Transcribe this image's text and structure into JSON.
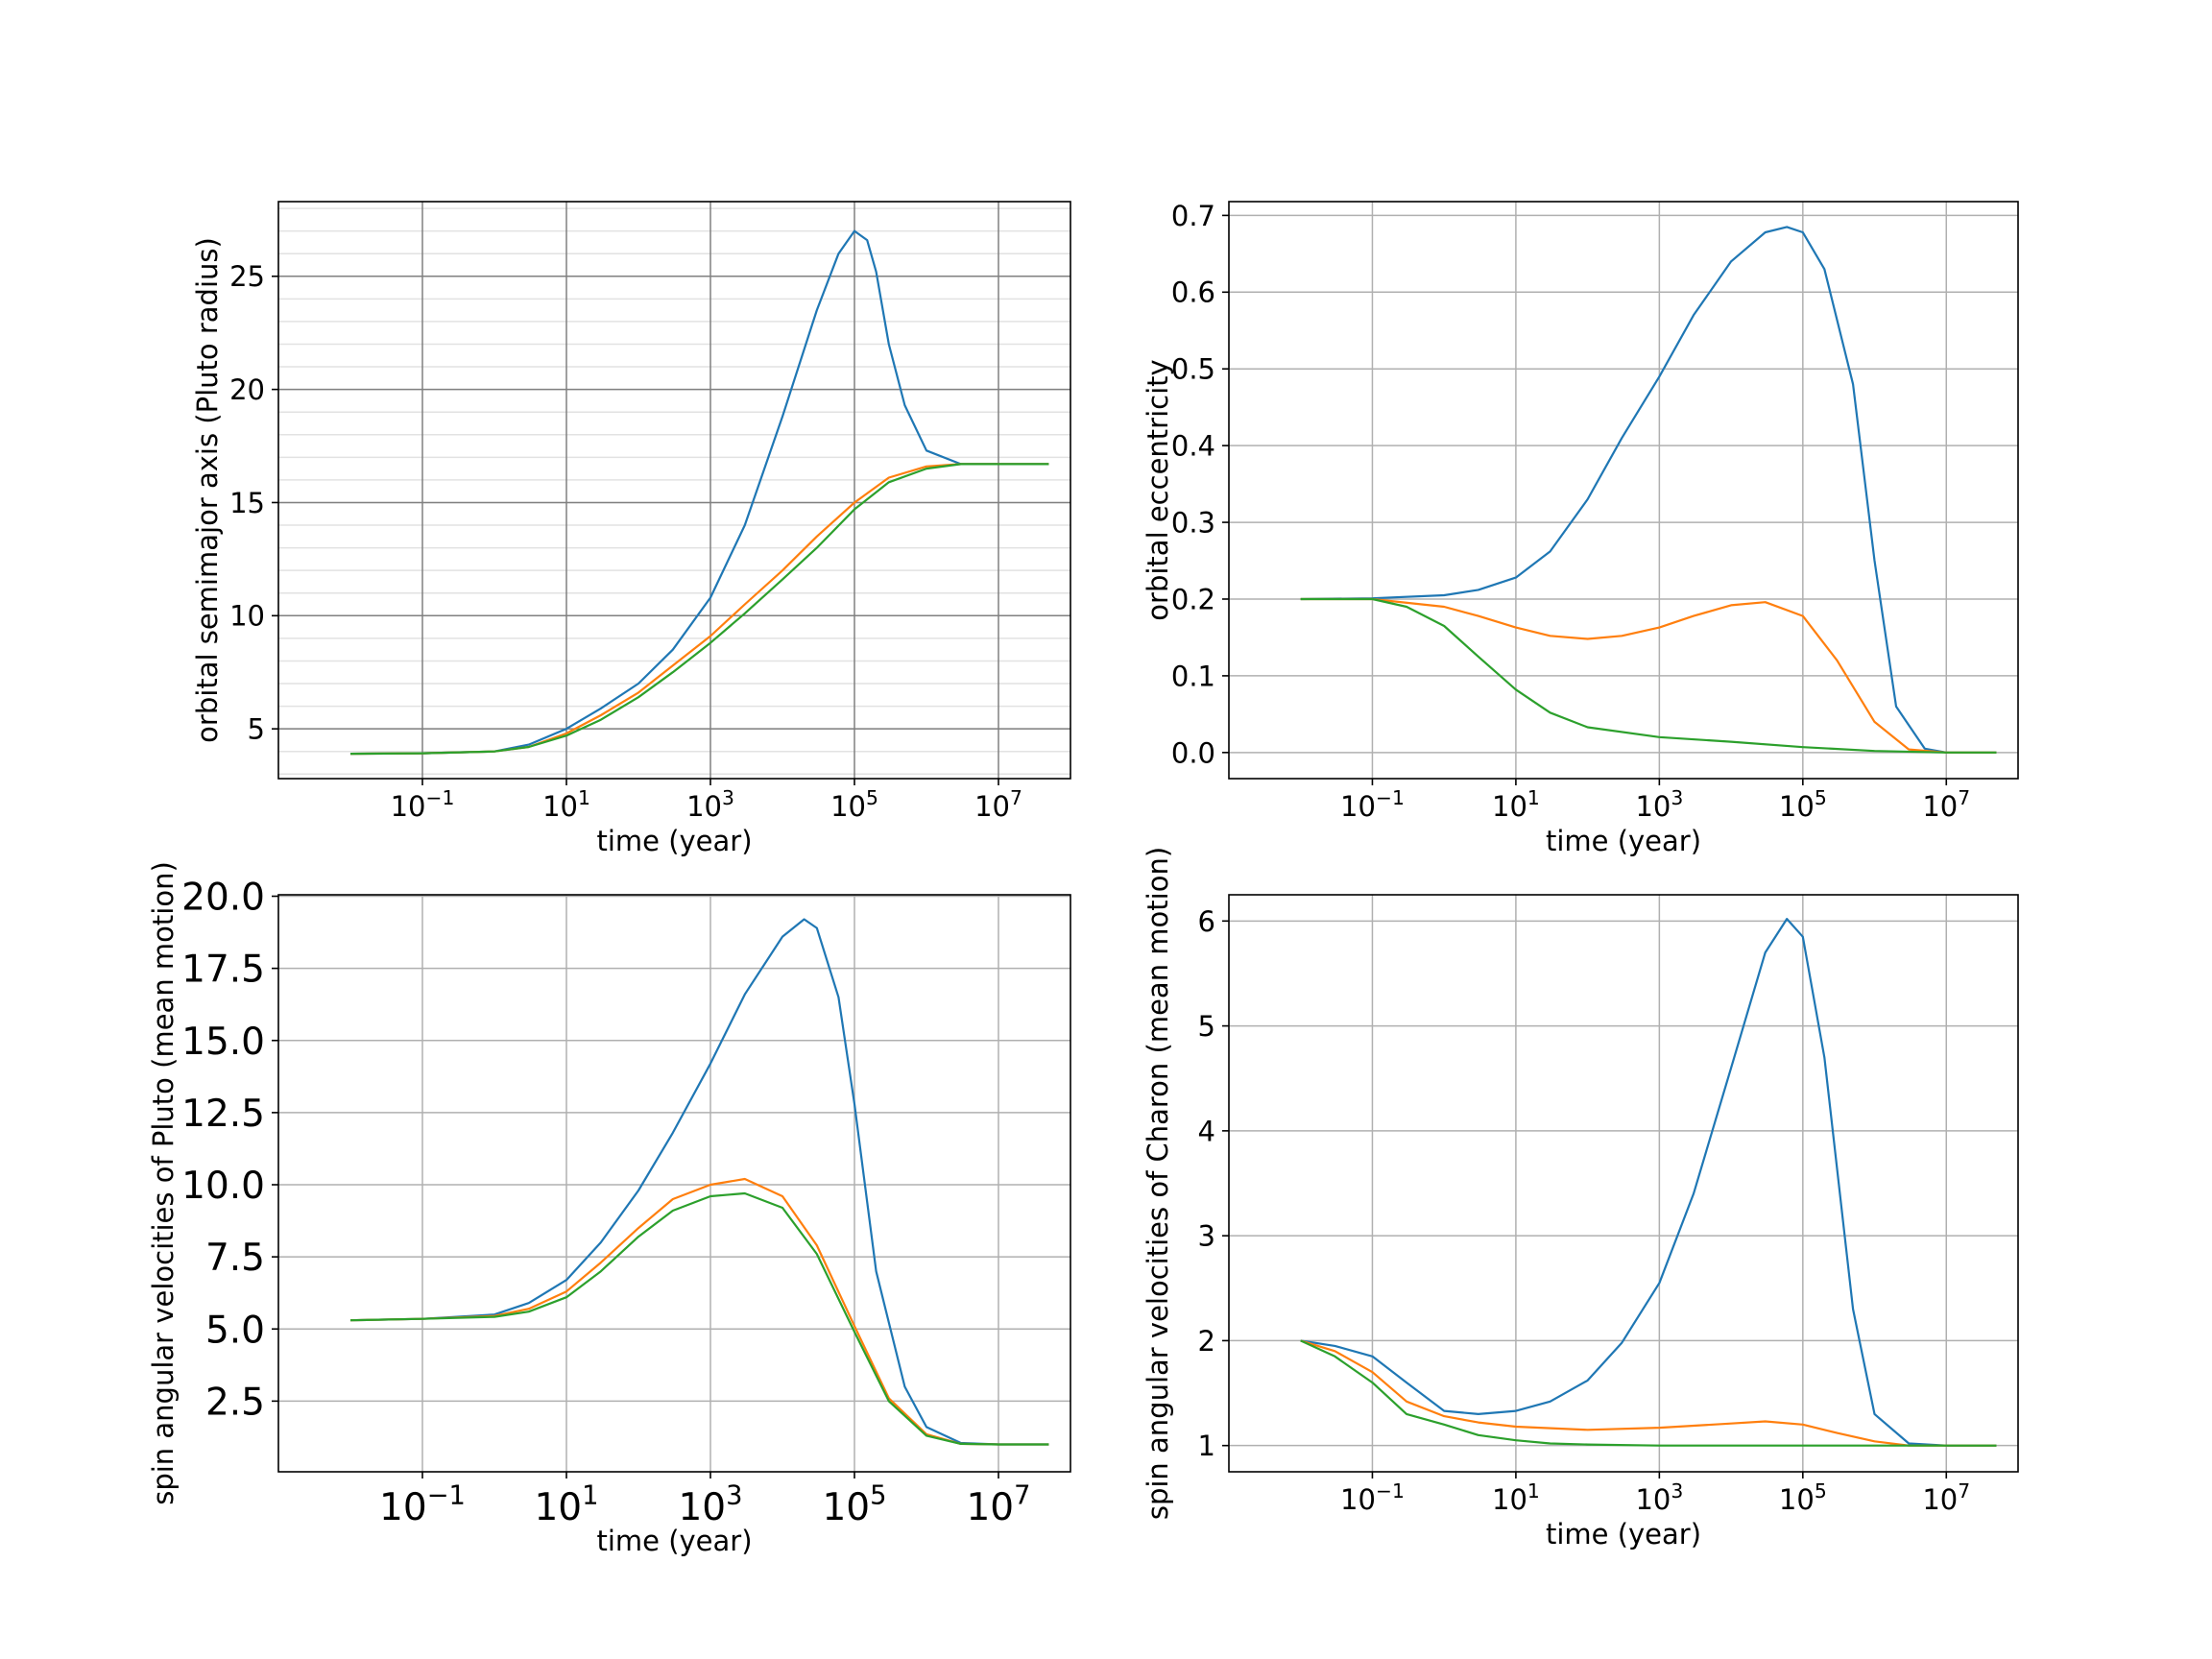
{
  "colors": {
    "series1": "#1f77b4",
    "series2": "#ff7f0e",
    "series3": "#2ca02c",
    "grid": "#b0b0b0",
    "axes": "#000000"
  },
  "chart_data": [
    {
      "type": "line",
      "xlabel": "time  (year)",
      "ylabel": "orbital semimajor axis (Pluto radius)",
      "xscale": "log",
      "xlim": [
        0.001,
        100000000
      ],
      "ylim": [
        2.8,
        28.3
      ],
      "xticks": [
        0.1,
        10,
        1000,
        100000,
        10000000
      ],
      "xtick_labels": [
        {
          "base": "10",
          "exp": "−1"
        },
        {
          "base": "10",
          "exp": "1"
        },
        {
          "base": "10",
          "exp": "3"
        },
        {
          "base": "10",
          "exp": "5"
        },
        {
          "base": "10",
          "exp": "7"
        }
      ],
      "yticks": [
        5,
        10,
        15,
        20,
        25
      ],
      "ytick_labels": [
        "5",
        "10",
        "15",
        "20",
        "25"
      ],
      "minor_ygrid": true,
      "grid": true,
      "series": [
        {
          "x": [
            0.01,
            0.1,
            1,
            3,
            10,
            30,
            100,
            300,
            1000,
            3000,
            10000,
            30000,
            60000,
            100000,
            150000,
            200000,
            300000,
            500000,
            1000000,
            3000000,
            10000000,
            50000000
          ],
          "y": [
            3.9,
            3.92,
            4.0,
            4.3,
            5.0,
            5.9,
            7.0,
            8.5,
            10.8,
            14.0,
            18.8,
            23.5,
            26.0,
            27.0,
            26.6,
            25.2,
            22.0,
            19.3,
            17.3,
            16.7,
            16.7,
            16.7
          ]
        },
        {
          "x": [
            0.01,
            0.1,
            1,
            3,
            10,
            30,
            100,
            300,
            1000,
            3000,
            10000,
            30000,
            100000,
            300000,
            1000000,
            3000000,
            10000000,
            50000000
          ],
          "y": [
            3.9,
            3.92,
            4.0,
            4.2,
            4.8,
            5.6,
            6.6,
            7.8,
            9.1,
            10.5,
            12.0,
            13.5,
            15.0,
            16.1,
            16.6,
            16.7,
            16.7,
            16.7
          ]
        },
        {
          "x": [
            0.01,
            0.1,
            1,
            3,
            10,
            30,
            100,
            300,
            1000,
            3000,
            10000,
            30000,
            100000,
            300000,
            1000000,
            3000000,
            10000000,
            50000000
          ],
          "y": [
            3.9,
            3.92,
            4.0,
            4.2,
            4.7,
            5.4,
            6.4,
            7.5,
            8.8,
            10.1,
            11.6,
            13.0,
            14.7,
            15.9,
            16.5,
            16.7,
            16.7,
            16.7
          ]
        }
      ]
    },
    {
      "type": "line",
      "xlabel": "time  (year)",
      "ylabel": "orbital eccentricity",
      "xscale": "log",
      "xlim": [
        0.001,
        100000000
      ],
      "ylim": [
        -0.034,
        0.718
      ],
      "xticks": [
        0.1,
        10,
        1000,
        100000,
        10000000
      ],
      "xtick_labels": [
        {
          "base": "10",
          "exp": "−1"
        },
        {
          "base": "10",
          "exp": "1"
        },
        {
          "base": "10",
          "exp": "3"
        },
        {
          "base": "10",
          "exp": "5"
        },
        {
          "base": "10",
          "exp": "7"
        }
      ],
      "yticks": [
        0.0,
        0.1,
        0.2,
        0.3,
        0.4,
        0.5,
        0.6,
        0.7
      ],
      "ytick_labels": [
        "0.0",
        "0.1",
        "0.2",
        "0.3",
        "0.4",
        "0.5",
        "0.6",
        "0.7"
      ],
      "minor_ygrid": false,
      "grid": true,
      "series": [
        {
          "x": [
            0.01,
            0.1,
            1,
            3,
            10,
            30,
            100,
            300,
            1000,
            3000,
            10000,
            30000,
            60000,
            100000,
            200000,
            500000,
            1000000,
            2000000,
            5000000,
            10000000,
            50000000
          ],
          "y": [
            0.2,
            0.201,
            0.205,
            0.212,
            0.228,
            0.262,
            0.33,
            0.41,
            0.49,
            0.57,
            0.64,
            0.678,
            0.685,
            0.678,
            0.63,
            0.48,
            0.25,
            0.06,
            0.005,
            0.0,
            0.0
          ]
        },
        {
          "x": [
            0.01,
            0.1,
            1,
            3,
            10,
            30,
            100,
            300,
            1000,
            3000,
            10000,
            30000,
            100000,
            300000,
            1000000,
            3000000,
            10000000,
            50000000
          ],
          "y": [
            0.2,
            0.2,
            0.19,
            0.178,
            0.163,
            0.152,
            0.148,
            0.152,
            0.163,
            0.178,
            0.192,
            0.196,
            0.178,
            0.12,
            0.04,
            0.004,
            0.0,
            0.0
          ]
        },
        {
          "x": [
            0.01,
            0.1,
            0.3,
            1,
            3,
            10,
            30,
            100,
            1000,
            10000,
            100000,
            1000000,
            10000000,
            50000000
          ],
          "y": [
            0.2,
            0.2,
            0.19,
            0.165,
            0.125,
            0.082,
            0.052,
            0.033,
            0.02,
            0.014,
            0.007,
            0.002,
            0.0,
            0.0
          ]
        }
      ]
    },
    {
      "type": "line",
      "xlabel": "time (year)",
      "ylabel": "spin angular velocities of Pluto (mean motion)",
      "xscale": "log",
      "xlim": [
        0.001,
        100000000
      ],
      "ylim": [
        0.05,
        20.05
      ],
      "xticks": [
        0.1,
        10,
        1000,
        100000,
        10000000
      ],
      "xtick_labels": [
        {
          "base": "10",
          "exp": "−1"
        },
        {
          "base": "10",
          "exp": "1"
        },
        {
          "base": "10",
          "exp": "3"
        },
        {
          "base": "10",
          "exp": "5"
        },
        {
          "base": "10",
          "exp": "7"
        }
      ],
      "yticks": [
        2.5,
        5.0,
        7.5,
        10.0,
        12.5,
        15.0,
        17.5,
        20.0
      ],
      "ytick_labels": [
        "2.5",
        "5.0",
        "7.5",
        "10.0",
        "12.5",
        "15.0",
        "17.5",
        "20.0"
      ],
      "large_ticks": true,
      "minor_ygrid": false,
      "grid": true,
      "series": [
        {
          "x": [
            0.01,
            0.1,
            1,
            3,
            10,
            30,
            100,
            300,
            1000,
            3000,
            10000,
            20000,
            30000,
            60000,
            100000,
            200000,
            500000,
            1000000,
            3000000,
            10000000,
            50000000
          ],
          "y": [
            5.3,
            5.35,
            5.5,
            5.9,
            6.7,
            8.0,
            9.8,
            11.8,
            14.2,
            16.6,
            18.6,
            19.2,
            18.9,
            16.5,
            12.8,
            7.0,
            3.0,
            1.6,
            1.05,
            1.0,
            1.0
          ]
        },
        {
          "x": [
            0.01,
            0.1,
            1,
            3,
            10,
            30,
            100,
            300,
            1000,
            3000,
            10000,
            30000,
            100000,
            300000,
            1000000,
            3000000,
            10000000,
            50000000
          ],
          "y": [
            5.3,
            5.35,
            5.45,
            5.7,
            6.3,
            7.3,
            8.5,
            9.5,
            10.0,
            10.2,
            9.6,
            7.9,
            5.1,
            2.6,
            1.35,
            1.02,
            1.0,
            1.0
          ]
        },
        {
          "x": [
            0.01,
            0.1,
            1,
            3,
            10,
            30,
            100,
            300,
            1000,
            3000,
            10000,
            30000,
            100000,
            300000,
            1000000,
            3000000,
            10000000,
            50000000
          ],
          "y": [
            5.3,
            5.35,
            5.42,
            5.6,
            6.1,
            7.0,
            8.2,
            9.1,
            9.6,
            9.7,
            9.2,
            7.6,
            4.9,
            2.5,
            1.3,
            1.02,
            1.0,
            1.0
          ]
        }
      ]
    },
    {
      "type": "line",
      "xlabel": "time  (year)",
      "ylabel": "spin angular velocities of Charon (mean motion)",
      "xscale": "log",
      "xlim": [
        0.001,
        100000000
      ],
      "ylim": [
        0.75,
        6.25
      ],
      "xticks": [
        0.1,
        10,
        1000,
        100000,
        10000000
      ],
      "xtick_labels": [
        {
          "base": "10",
          "exp": "−1"
        },
        {
          "base": "10",
          "exp": "1"
        },
        {
          "base": "10",
          "exp": "3"
        },
        {
          "base": "10",
          "exp": "5"
        },
        {
          "base": "10",
          "exp": "7"
        }
      ],
      "yticks": [
        1,
        2,
        3,
        4,
        5,
        6
      ],
      "ytick_labels": [
        "1",
        "2",
        "3",
        "4",
        "5",
        "6"
      ],
      "minor_ygrid": false,
      "grid": true,
      "series": [
        {
          "x": [
            0.01,
            0.03,
            0.1,
            0.3,
            1,
            3,
            10,
            30,
            100,
            300,
            1000,
            3000,
            10000,
            30000,
            60000,
            100000,
            200000,
            500000,
            1000000,
            3000000,
            10000000,
            50000000
          ],
          "y": [
            2.0,
            1.95,
            1.85,
            1.6,
            1.33,
            1.3,
            1.33,
            1.42,
            1.62,
            1.98,
            2.55,
            3.4,
            4.6,
            5.7,
            6.02,
            5.85,
            4.7,
            2.3,
            1.3,
            1.02,
            1.0,
            1.0
          ]
        },
        {
          "x": [
            0.01,
            0.03,
            0.1,
            0.3,
            1,
            3,
            10,
            100,
            1000,
            10000,
            30000,
            100000,
            300000,
            1000000,
            3000000,
            10000000,
            50000000
          ],
          "y": [
            2.0,
            1.9,
            1.7,
            1.42,
            1.28,
            1.22,
            1.18,
            1.15,
            1.17,
            1.21,
            1.23,
            1.2,
            1.12,
            1.04,
            1.0,
            1.0,
            1.0
          ]
        },
        {
          "x": [
            0.01,
            0.03,
            0.1,
            0.3,
            1,
            3,
            10,
            30,
            100,
            1000,
            10000,
            100000,
            1000000,
            50000000
          ],
          "y": [
            2.0,
            1.85,
            1.6,
            1.3,
            1.2,
            1.1,
            1.05,
            1.02,
            1.01,
            1.0,
            1.0,
            1.0,
            1.0,
            1.0
          ]
        }
      ]
    }
  ]
}
